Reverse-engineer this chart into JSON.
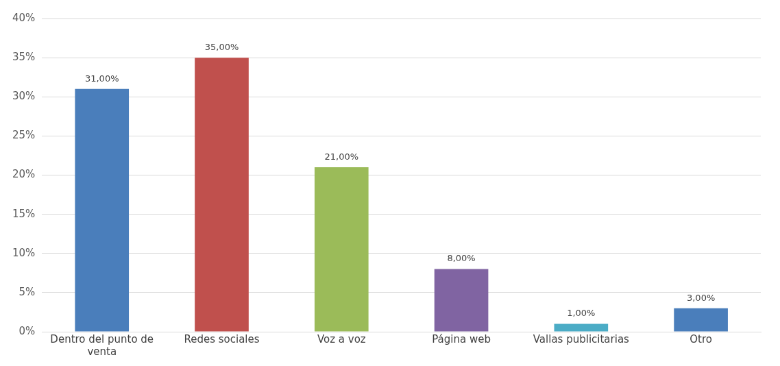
{
  "chart_data": {
    "type": "bar",
    "categories": [
      "Dentro del punto de venta",
      "Redes sociales",
      "Voz a voz",
      "Página web",
      "Vallas publicitarias",
      "Otro"
    ],
    "values": [
      31,
      35,
      21,
      8,
      1,
      3
    ],
    "colors": [
      "#4a7ebb",
      "#c0504d",
      "#9bbb59",
      "#8064a2",
      "#4bacc6",
      "#4a7ebb"
    ],
    "value_labels": [
      "31,00%",
      "35,00%",
      "21,00%",
      "8,00%",
      "1,00%",
      "3,00%"
    ],
    "ylim": [
      0,
      40
    ],
    "yticks": [
      {
        "value": 0,
        "label": "0%"
      },
      {
        "value": 5,
        "label": "5%"
      },
      {
        "value": 10,
        "label": "10%"
      },
      {
        "value": 15,
        "label": "15%"
      },
      {
        "value": 20,
        "label": "20%"
      },
      {
        "value": 25,
        "label": "25%"
      },
      {
        "value": 30,
        "label": "30%"
      },
      {
        "value": 35,
        "label": "35%"
      },
      {
        "value": 40,
        "label": "40%"
      }
    ],
    "grid": "y",
    "legend": false
  }
}
